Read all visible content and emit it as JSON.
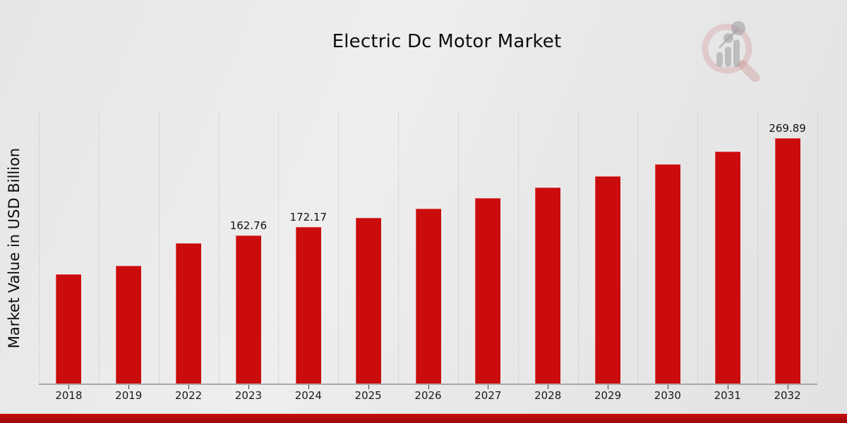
{
  "chart_data": {
    "type": "bar",
    "title": "Electric Dc Motor Market",
    "xlabel": "",
    "ylabel": "Market Value in USD Billion",
    "categories": [
      "2018",
      "2019",
      "2022",
      "2023",
      "2024",
      "2025",
      "2026",
      "2027",
      "2028",
      "2029",
      "2030",
      "2031",
      "2032"
    ],
    "values": [
      120.3,
      130.0,
      154.5,
      162.76,
      172.17,
      182.1,
      192.6,
      203.8,
      215.6,
      228.0,
      241.2,
      255.2,
      269.89
    ],
    "data_labels": [
      "",
      "",
      "",
      "162.76",
      "172.17",
      "",
      "",
      "",
      "",
      "",
      "",
      "",
      "269.89"
    ],
    "ylim": [
      0,
      298
    ],
    "grid": "vertical-dotted",
    "legend_position": "none",
    "bar_color": "#cb0c0c"
  },
  "colors": {
    "bar": "#cb0c0c",
    "footer_band_top": "#c70e0e",
    "footer_band_bottom": "#9c0808",
    "background": "#e8e8e8",
    "gridline": "#c6c6c6",
    "axis_line": "#a8a8a8",
    "text": "#111111"
  },
  "logo": {
    "name": "magnifier-bar-chart-watermark"
  }
}
